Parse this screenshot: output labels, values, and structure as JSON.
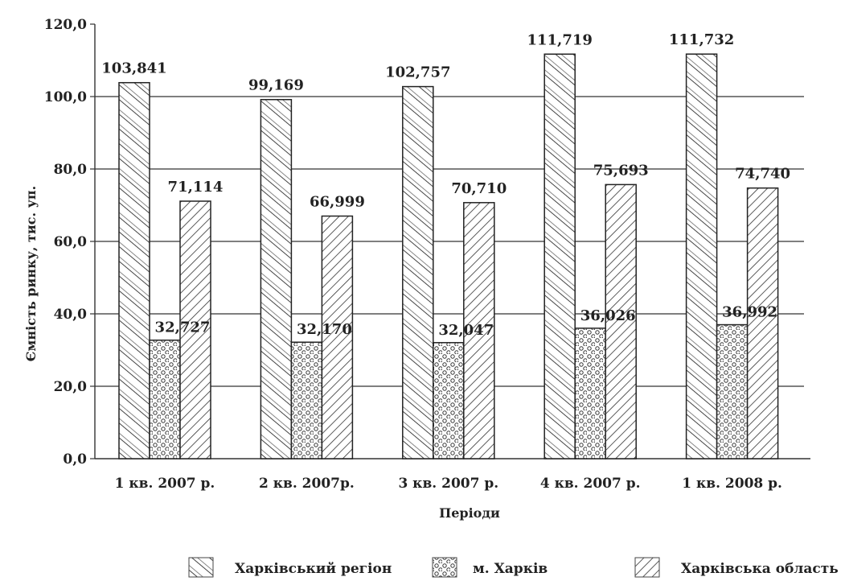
{
  "chart_data": {
    "type": "bar",
    "title": "",
    "xlabel": "Періоди",
    "ylabel": "Ємність ринку, тис. уп.",
    "ylim": [
      0,
      120
    ],
    "yticks": [
      0,
      20,
      40,
      60,
      80,
      100,
      120
    ],
    "ytick_labels": [
      "0,0",
      "20,0",
      "40,0",
      "60,0",
      "80,0",
      "100,0",
      "120,0"
    ],
    "grid": true,
    "legend_position": "bottom",
    "categories": [
      "1 кв. 2007 р.",
      "2 кв. 2007р.",
      "3 кв. 2007 р.",
      "4 кв. 2007 р.",
      "1 кв. 2008 р."
    ],
    "series": [
      {
        "name": "Харківський регіон",
        "pattern": "hatch-wide",
        "values": [
          103.841,
          99.169,
          102.757,
          111.719,
          111.732
        ],
        "labels": [
          "103,841",
          "99,169",
          "102,757",
          "111,719",
          "111,732"
        ]
      },
      {
        "name": "м. Харків",
        "pattern": "dots",
        "values": [
          32.727,
          32.17,
          32.047,
          36.026,
          36.992
        ],
        "labels": [
          "32,727",
          "32,170",
          "32,047",
          "36,026",
          "36,992"
        ]
      },
      {
        "name": "Харківська область",
        "pattern": "hatch-dense",
        "values": [
          71.114,
          66.999,
          70.71,
          75.693,
          74.74
        ],
        "labels": [
          "71,114",
          "66,999",
          "70,710",
          "75,693",
          "74,740"
        ]
      }
    ]
  }
}
